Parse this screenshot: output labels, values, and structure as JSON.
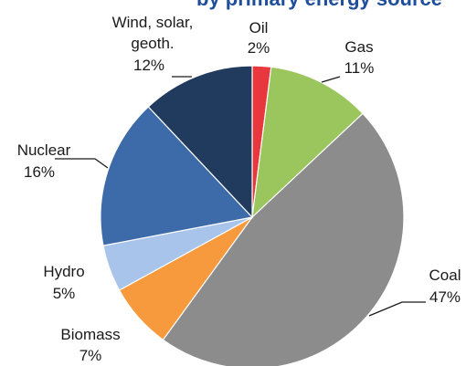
{
  "chart_data": {
    "type": "pie",
    "title_fragment": "by primary energy source",
    "start": "12 o'clock, clockwise",
    "slices": [
      {
        "name": "Oil",
        "value": 2,
        "label_line1": "Oil",
        "label_line2": "2%",
        "color": "#e8383d"
      },
      {
        "name": "Gas",
        "value": 11,
        "label_line1": "Gas",
        "label_line2": "11%",
        "color": "#9bc55d"
      },
      {
        "name": "Coal",
        "value": 47,
        "label_line1": "Coal",
        "label_line2": "47%",
        "color": "#8c8c8c"
      },
      {
        "name": "Biomass",
        "value": 7,
        "label_line1": "Biomass",
        "label_line2": "7%",
        "color": "#f79a3e"
      },
      {
        "name": "Hydro",
        "value": 5,
        "label_line1": "Hydro",
        "label_line2": "5%",
        "color": "#a9c4ea"
      },
      {
        "name": "Nuclear",
        "value": 16,
        "label_line1": "Nuclear",
        "label_line2": "16%",
        "color": "#3d6aa8"
      },
      {
        "name": "Wind, solar, geoth.",
        "value": 12,
        "label_line1": "Wind, solar,",
        "label_line1b": "geoth.",
        "label_line2": "12%",
        "color": "#213b5e"
      }
    ]
  }
}
